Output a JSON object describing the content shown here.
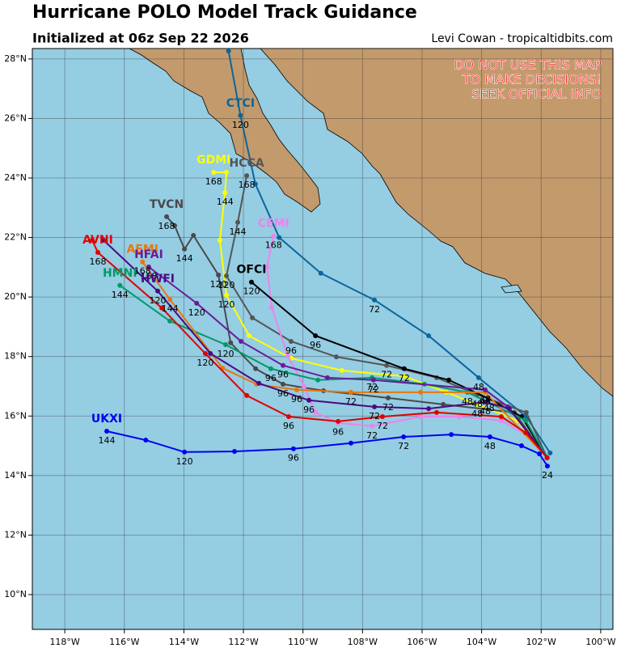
{
  "chart_data": {
    "type": "line",
    "title": "Hurricane POLO Model Track Guidance",
    "subtitle": "Initialized at 06z Sep 22 2026",
    "credit": "Levi Cowan - tropicaltidbits.com",
    "warning": [
      "DO NOT USE THIS MAP",
      "TO MAKE DECISIONS!",
      "SEEK OFFICIAL INFO"
    ],
    "xlim": [
      -119.09,
      -99.59
    ],
    "ylim": [
      8.83,
      28.35
    ],
    "grid": true,
    "xticks": [
      {
        "value": -118,
        "label": "118°W"
      },
      {
        "value": -116,
        "label": "116°W"
      },
      {
        "value": -114,
        "label": "114°W"
      },
      {
        "value": -112,
        "label": "112°W"
      },
      {
        "value": -110,
        "label": "110°W"
      },
      {
        "value": -108,
        "label": "108°W"
      },
      {
        "value": -106,
        "label": "106°W"
      },
      {
        "value": -104,
        "label": "104°W"
      },
      {
        "value": -102,
        "label": "102°W"
      },
      {
        "value": -100,
        "label": "100°W"
      }
    ],
    "yticks": [
      {
        "value": 10,
        "label": "10°N"
      },
      {
        "value": 12,
        "label": "12°N"
      },
      {
        "value": 14,
        "label": "14°N"
      },
      {
        "value": 16,
        "label": "16°N"
      },
      {
        "value": 18,
        "label": "18°N"
      },
      {
        "value": 20,
        "label": "20°N"
      },
      {
        "value": 22,
        "label": "22°N"
      },
      {
        "value": 24,
        "label": "24°N"
      },
      {
        "value": 26,
        "label": "26°N"
      },
      {
        "value": 28,
        "label": "28°N"
      }
    ],
    "series": [
      {
        "name": "CTCI",
        "color": "#0a669c",
        "x": [
          -101.7,
          -102.5,
          -104.1,
          -105.78,
          -107.6,
          -109.4,
          -110.8,
          -111.6,
          -112.1,
          -112.5
        ],
        "values": [
          14.76,
          15.98,
          17.29,
          18.7,
          19.9,
          20.8,
          22.0,
          23.8,
          26.1,
          28.27
        ],
        "point_labels": [
          null,
          null,
          48,
          null,
          72,
          null,
          null,
          null,
          120,
          null
        ]
      },
      {
        "name": "GDMI",
        "color": "#ffff00",
        "x": [
          -101.8,
          -102.8,
          -104.15,
          -105.18,
          -106.6,
          -108.69,
          -110.4,
          -111.81,
          -112.57,
          -112.79,
          -112.62,
          -112.57,
          -113.0
        ],
        "values": [
          14.6,
          15.85,
          16.39,
          16.8,
          17.34,
          17.53,
          17.94,
          18.7,
          20.06,
          21.91,
          23.51,
          24.19,
          24.19
        ],
        "point_labels": [
          null,
          null,
          48,
          null,
          null,
          null,
          null,
          null,
          120,
          null,
          144,
          null,
          168
        ]
      },
      {
        "name": "HCCA",
        "color": "#555555",
        "x": [
          -101.8,
          -102.5,
          -104.15,
          -105.51,
          -107.19,
          -108.88,
          -110.4,
          -111.7,
          -112.57,
          -112.19,
          -111.89
        ],
        "values": [
          14.6,
          16.12,
          16.72,
          17.29,
          17.7,
          17.99,
          18.51,
          19.3,
          20.71,
          22.51,
          24.08
        ],
        "point_labels": [
          null,
          null,
          48,
          null,
          72,
          null,
          96,
          null,
          120,
          144,
          168
        ]
      },
      {
        "name": "TVCN",
        "color": "#4a4a4a",
        "x": [
          -101.8,
          -102.9,
          -105.29,
          -107.14,
          -109.31,
          -110.67,
          -111.59,
          -112.43,
          -112.84,
          -113.68,
          -113.98,
          -114.31,
          -114.58
        ],
        "values": [
          14.6,
          16.12,
          16.39,
          16.61,
          16.85,
          17.07,
          17.59,
          18.46,
          20.74,
          22.07,
          21.61,
          22.4,
          22.7
        ],
        "point_labels": [
          null,
          null,
          null,
          72,
          null,
          96,
          null,
          null,
          120,
          null,
          144,
          null,
          168
        ]
      },
      {
        "name": "CEMI",
        "color": "#ee82ee",
        "x": [
          -101.8,
          -102.39,
          -103.34,
          -104.75,
          -106.05,
          -107.68,
          -108.82,
          -109.58,
          -109.96,
          -110.51,
          -111.05,
          -111.21,
          -110.99
        ],
        "values": [
          14.6,
          15.3,
          15.85,
          15.98,
          15.98,
          15.66,
          15.77,
          16.12,
          16.99,
          18.02,
          19.65,
          21.01,
          22.05
        ],
        "point_labels": [
          null,
          null,
          null,
          null,
          null,
          72,
          96,
          null,
          null,
          null,
          null,
          null,
          168
        ]
      },
      {
        "name": "OFCI",
        "color": "#000000",
        "x": [
          -101.8,
          -102.66,
          -103.75,
          -105.1,
          -106.6,
          -109.58,
          -111.73
        ],
        "values": [
          14.6,
          15.98,
          16.58,
          17.21,
          17.59,
          18.7,
          20.5
        ],
        "point_labels": [
          null,
          null,
          48,
          null,
          72,
          96,
          120
        ]
      },
      {
        "name": "HMNI",
        "color": "#009966",
        "x": [
          -101.8,
          -102.52,
          -104.48,
          -105.92,
          -107.68,
          -109.5,
          -111.08,
          -112.6,
          -114.47,
          -116.15
        ],
        "values": [
          14.6,
          15.85,
          16.8,
          17.07,
          17.29,
          17.21,
          17.59,
          18.4,
          19.19,
          20.39
        ],
        "point_labels": [
          null,
          null,
          48,
          null,
          72,
          null,
          96,
          120,
          null,
          144
        ]
      },
      {
        "name": "AEMI",
        "color": "#e8780a",
        "x": [
          -101.8,
          -103.88,
          -106.05,
          -108.39,
          -110.21,
          -111.56,
          -112.7,
          -114.47,
          -115.39
        ],
        "values": [
          14.6,
          16.8,
          16.8,
          16.8,
          16.88,
          17.07,
          17.61,
          19.92,
          21.18
        ],
        "point_labels": [
          null,
          48,
          null,
          72,
          96,
          null,
          null,
          144,
          168
        ]
      },
      {
        "name": "HFAI",
        "color": "#6a1b9a",
        "x": [
          -101.8,
          -103.12,
          -103.88,
          -107.63,
          -109.18,
          -110.67,
          -112.08,
          -113.57,
          -115.18
        ],
        "values": [
          14.6,
          16.31,
          16.88,
          17.21,
          17.29,
          17.7,
          18.51,
          19.79,
          21.01
        ],
        "point_labels": [
          null,
          null,
          48,
          72,
          null,
          96,
          null,
          120,
          168
        ]
      },
      {
        "name": "HWFI",
        "color": "#4b0a82",
        "x": [
          -101.8,
          -103.07,
          -103.88,
          -105.78,
          -107.6,
          -109.8,
          -111.48,
          -113.11,
          -114.88,
          -116.7
        ],
        "values": [
          14.6,
          16.25,
          16.47,
          16.25,
          16.31,
          16.53,
          17.1,
          18.1,
          20.2,
          21.91
        ],
        "point_labels": [
          null,
          null,
          48,
          null,
          72,
          96,
          null,
          null,
          120,
          null
        ]
      },
      {
        "name": "AVNI",
        "color": "#e00000",
        "x": [
          -101.8,
          -102.52,
          -103.34,
          -105.51,
          -107.33,
          -108.82,
          -110.48,
          -111.89,
          -113.28,
          -114.74,
          -116.89,
          -117.08
        ],
        "values": [
          14.6,
          15.44,
          15.98,
          16.12,
          15.98,
          15.82,
          15.98,
          16.69,
          18.1,
          19.63,
          21.5,
          21.91
        ],
        "point_labels": [
          null,
          null,
          null,
          null,
          72,
          null,
          96,
          null,
          120,
          null,
          168,
          null
        ]
      },
      {
        "name": "UKXI",
        "color": "#0000ee",
        "x": [
          -101.79,
          -102.06,
          -102.66,
          -103.72,
          -105.02,
          -106.62,
          -108.39,
          -110.32,
          -112.3,
          -113.98,
          -115.28,
          -116.59
        ],
        "values": [
          14.32,
          14.73,
          15.0,
          15.3,
          15.38,
          15.3,
          15.09,
          14.9,
          14.81,
          14.79,
          15.19,
          15.49
        ],
        "point_labels": [
          24,
          null,
          null,
          48,
          null,
          72,
          null,
          96,
          null,
          120,
          null,
          144
        ]
      }
    ]
  }
}
